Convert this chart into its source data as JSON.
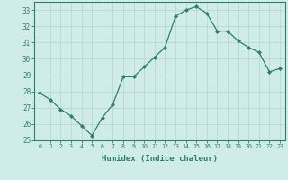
{
  "x": [
    0,
    1,
    2,
    3,
    4,
    5,
    6,
    7,
    8,
    9,
    10,
    11,
    12,
    13,
    14,
    15,
    16,
    17,
    18,
    19,
    20,
    21,
    22,
    23
  ],
  "y": [
    27.9,
    27.5,
    26.9,
    26.5,
    25.9,
    25.3,
    26.4,
    27.2,
    28.9,
    28.9,
    29.5,
    30.1,
    30.7,
    32.6,
    33.0,
    33.2,
    32.8,
    31.7,
    31.7,
    31.1,
    30.7,
    30.4,
    29.2,
    29.4
  ],
  "line_color": "#2e7d6e",
  "marker": "D",
  "marker_size": 2.0,
  "bg_color": "#d0ecea",
  "grid_color": "#b8d8d5",
  "tick_color": "#2e7d6e",
  "xlabel": "Humidex (Indice chaleur)",
  "ylim": [
    25,
    33.5
  ],
  "xlim": [
    -0.5,
    23.5
  ],
  "yticks": [
    25,
    26,
    27,
    28,
    29,
    30,
    31,
    32,
    33
  ],
  "xticks": [
    0,
    1,
    2,
    3,
    4,
    5,
    6,
    7,
    8,
    9,
    10,
    11,
    12,
    13,
    14,
    15,
    16,
    17,
    18,
    19,
    20,
    21,
    22,
    23
  ],
  "xtick_labels": [
    "0",
    "1",
    "2",
    "3",
    "4",
    "5",
    "6",
    "7",
    "8",
    "9",
    "10",
    "11",
    "12",
    "13",
    "14",
    "15",
    "16",
    "17",
    "18",
    "19",
    "20",
    "21",
    "22",
    "23"
  ]
}
